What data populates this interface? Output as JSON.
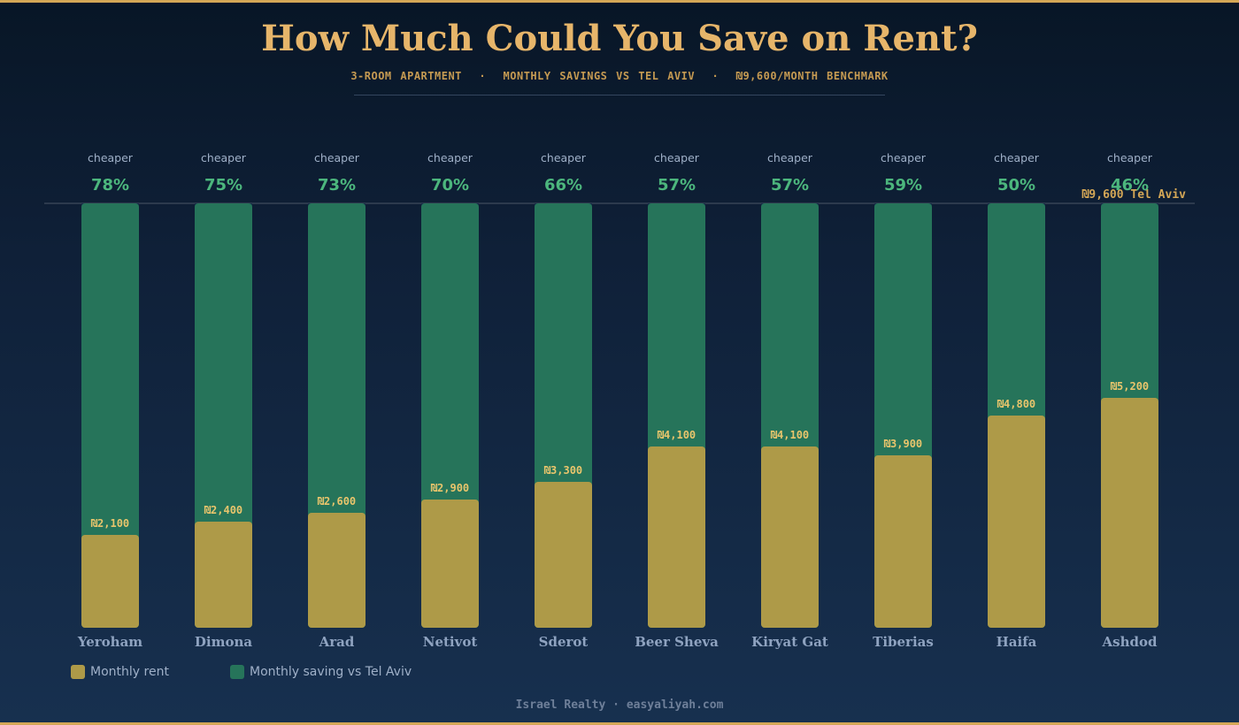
{
  "header": {
    "title": "How Much Could You Save on Rent?",
    "subtitle": "3-ROOM APARTMENT  ·  MONTHLY SAVINGS VS TEL AVIV  ·  ₪9,600/MONTH BENCHMARK"
  },
  "colors": {
    "rent": "#ae9a48",
    "saving": "#26745a",
    "track": "#152a47",
    "accent": "#d4a756",
    "percent": "#4cb67d"
  },
  "chart_data": {
    "type": "bar",
    "stacked": true,
    "categories": [
      "Yeroham",
      "Dimona",
      "Arad",
      "Netivot",
      "Sderot",
      "Beer Sheva",
      "Kiryat Gat",
      "Tiberias",
      "Haifa",
      "Ashdod"
    ],
    "series": [
      {
        "name": "Monthly rent",
        "values": [
          2100,
          2400,
          2600,
          2900,
          3300,
          4100,
          4100,
          3900,
          4800,
          5200
        ]
      },
      {
        "name": "Monthly saving vs Tel Aviv",
        "values": [
          7500,
          7200,
          7000,
          6700,
          6300,
          5500,
          5500,
          5700,
          4800,
          4400
        ]
      }
    ],
    "rent_labels": [
      "₪2,100",
      "₪2,400",
      "₪2,600",
      "₪2,900",
      "₪3,300",
      "₪4,100",
      "₪4,100",
      "₪3,900",
      "₪4,800",
      "₪5,200"
    ],
    "percent_cheaper": [
      "78%",
      "75%",
      "73%",
      "70%",
      "66%",
      "57%",
      "57%",
      "59%",
      "50%",
      "46%"
    ],
    "cheaper_label": "cheaper",
    "benchmark": {
      "value": 9600,
      "label": "₪9,600 Tel Aviv"
    },
    "ylim": [
      0,
      9600
    ],
    "xlabel": "",
    "ylabel": ""
  },
  "legend": {
    "items": [
      "Monthly rent",
      "Monthly saving vs Tel Aviv"
    ]
  },
  "footer": {
    "text": "Israel Realty · easyaliyah.com"
  }
}
